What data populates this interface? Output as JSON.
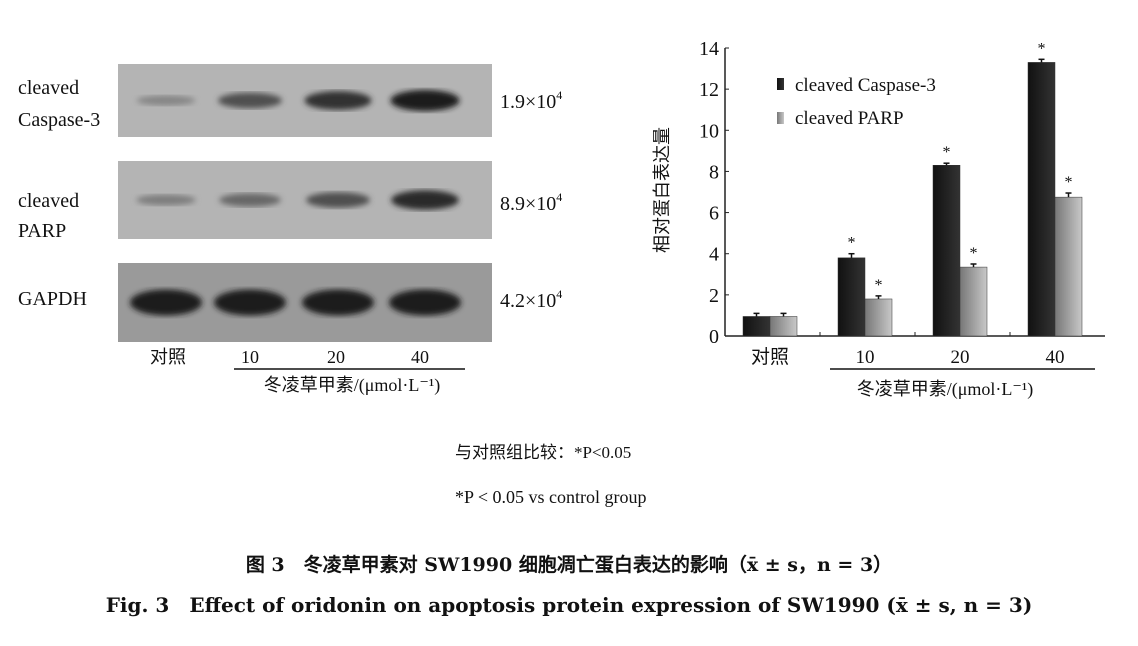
{
  "blot": {
    "rows": [
      {
        "label_line1": "cleaved",
        "label_line2": "Caspase-3",
        "mw": "1.9×10",
        "mw_exp": "4",
        "intensity": [
          0.25,
          0.6,
          0.8,
          0.95
        ]
      },
      {
        "label_line1": "cleaved",
        "label_line2": "PARP",
        "mw": "8.9×10",
        "mw_exp": "4",
        "intensity": [
          0.3,
          0.45,
          0.6,
          0.85
        ]
      },
      {
        "label_line1": "GAPDH",
        "label_line2": "",
        "mw": "4.2×10",
        "mw_exp": "4",
        "intensity": [
          0.95,
          0.95,
          0.95,
          0.95
        ]
      }
    ],
    "lanes": [
      "对照",
      "10",
      "20",
      "40"
    ],
    "xlabel": "冬凌草甲素/(μmol·L⁻¹)"
  },
  "chart_data": {
    "type": "bar",
    "categories": [
      "对照",
      "10",
      "20",
      "40"
    ],
    "series": [
      {
        "name": "cleaved Caspase-3",
        "values": [
          0.95,
          3.8,
          8.3,
          13.3
        ],
        "errors": [
          0.15,
          0.2,
          0.1,
          0.15
        ],
        "significant": [
          false,
          true,
          true,
          true
        ],
        "color": "#1a1a1a"
      },
      {
        "name": "cleaved PARP",
        "values": [
          0.95,
          1.8,
          3.35,
          6.75
        ],
        "errors": [
          0.15,
          0.15,
          0.15,
          0.2
        ],
        "significant": [
          false,
          true,
          true,
          true
        ],
        "color": "#a8a8a8"
      }
    ],
    "ylabel": "相对蛋白表达量",
    "xlabel": "冬凌草甲素/(μmol·L⁻¹)",
    "ylim": [
      0,
      14
    ],
    "yticks": [
      "0",
      "2",
      "4",
      "6",
      "8",
      "10",
      "12",
      "14"
    ],
    "legend": "top-left",
    "significance_marker": "*",
    "grid": false
  },
  "notes": {
    "cn": "与对照组比较：*P<0.05",
    "en": "*P < 0.05 vs control group"
  },
  "caption": {
    "cn": "图 3　冬凌草甲素对 SW1990 细胞凋亡蛋白表达的影响（x̄ ± s，n = 3）",
    "en": "Fig. 3　Effect of oridonin on apoptosis protein expression of SW1990 (x̄ ± s, n = 3)"
  }
}
